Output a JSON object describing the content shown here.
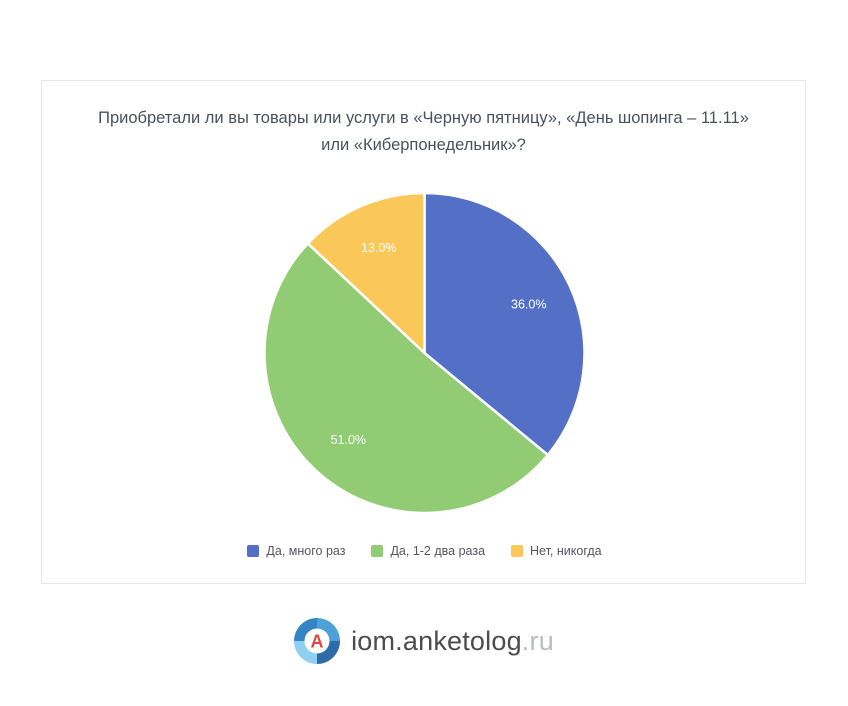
{
  "chart_data": {
    "type": "pie",
    "title": "Приобретали ли вы товары или услуги в «Черную пятницу», «День шопинга – 11.11» или «Киберпонедельник»?",
    "slices": [
      {
        "label": "Да, много раз",
        "value": 36.0,
        "color": "#5470c6"
      },
      {
        "label": "Да, 1-2 два раза",
        "value": 51.0,
        "color": "#91cc75"
      },
      {
        "label": "Нет, никогда",
        "value": 13.0,
        "color": "#fac858"
      }
    ],
    "label_format": "percent_one_decimal",
    "label_color": "#ffffff",
    "start_angle_deg": -90,
    "direction": "clockwise",
    "legend_position": "bottom",
    "slice_border_color": "#ffffff"
  },
  "footer": {
    "brand": "iom.anketolog",
    "brand_suffix": ".ru",
    "logo_letter": "A",
    "logo_letter_color": "#e0483e",
    "logo_segment_colors": [
      "#4da0d8",
      "#2d6ca8",
      "#8fd0f0",
      "#3585c5"
    ]
  }
}
